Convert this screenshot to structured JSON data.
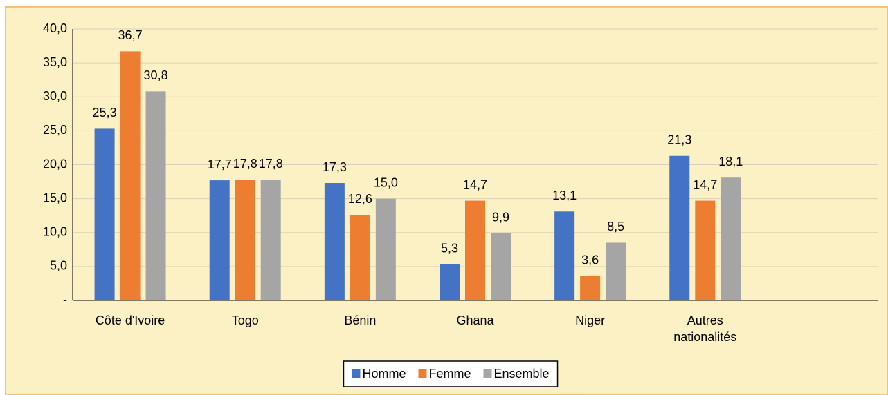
{
  "chart_data": {
    "type": "bar",
    "categories": [
      "Côte d'Ivoire",
      "Togo",
      "Bénin",
      "Ghana",
      "Niger",
      "Autres nationalités",
      null
    ],
    "series": [
      {
        "name": "Homme",
        "color": "#4472c4",
        "values": [
          25.3,
          17.7,
          17.3,
          5.3,
          13.1,
          21.3,
          null
        ],
        "value_labels": [
          "25,3",
          "17,7",
          "17,3",
          "5,3",
          "13,1",
          "21,3",
          null
        ]
      },
      {
        "name": "Femme",
        "color": "#ed7d31",
        "values": [
          36.7,
          17.8,
          12.6,
          14.7,
          3.6,
          14.7,
          null
        ],
        "value_labels": [
          "36,7",
          "17,8",
          "12,6",
          "14,7",
          "3,6",
          "14,7",
          null
        ]
      },
      {
        "name": "Ensemble",
        "color": "#a5a5a5",
        "values": [
          30.8,
          17.8,
          15.0,
          9.9,
          8.5,
          18.1,
          null
        ],
        "value_labels": [
          "30,8",
          "17,8",
          "15,0",
          "9,9",
          "8,5",
          "18,1",
          null
        ]
      }
    ],
    "ylim": [
      0,
      40
    ],
    "yticks": [
      {
        "value": 0,
        "label": "-"
      },
      {
        "value": 5,
        "label": "5,0"
      },
      {
        "value": 10,
        "label": "10,0"
      },
      {
        "value": 15,
        "label": "15,0"
      },
      {
        "value": 20,
        "label": "20,0"
      },
      {
        "value": 25,
        "label": "25,0"
      },
      {
        "value": 30,
        "label": "30,0"
      },
      {
        "value": 35,
        "label": "35,0"
      },
      {
        "value": 40,
        "label": "40,0"
      }
    ],
    "grid": true,
    "legend": "bottom"
  }
}
